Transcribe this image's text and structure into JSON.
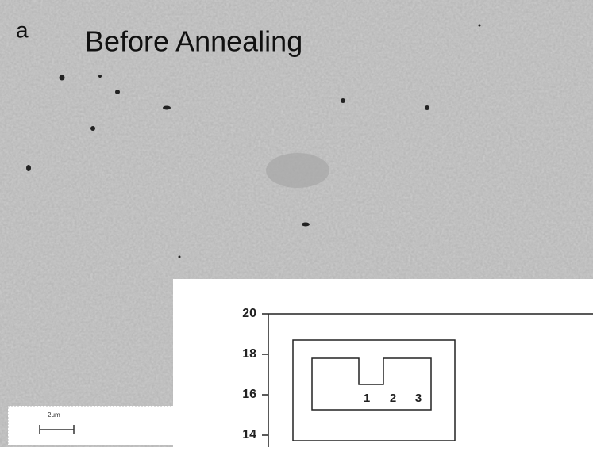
{
  "panel_label": "a",
  "title": "Before Annealing",
  "scale_bar": "2μm",
  "inset": {
    "yticks": [
      20,
      18,
      16,
      14
    ],
    "region_labels": [
      "1",
      "2",
      "3"
    ]
  }
}
